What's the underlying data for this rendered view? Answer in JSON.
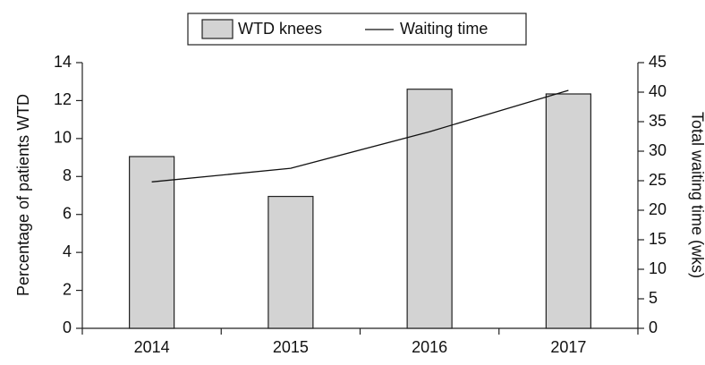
{
  "chart_data": {
    "type": "bar",
    "categories": [
      "2014",
      "2015",
      "2016",
      "2017"
    ],
    "series": [
      {
        "name": "WTD knees",
        "color": "#d3d3d3",
        "values": [
          9.05,
          6.95,
          12.6,
          12.35
        ]
      },
      {
        "name": "Waiting time",
        "color": "#111111",
        "type": "line",
        "axis": "y2",
        "values": [
          24.8,
          27.1,
          33.3,
          40.3
        ]
      }
    ],
    "ylabel": "Percentage of patients WTD",
    "y2label": "Total waiting time (wks)",
    "ylim": [
      0,
      14
    ],
    "yticks": [
      0,
      2,
      4,
      6,
      8,
      10,
      12,
      14
    ],
    "y2lim": [
      0,
      45
    ],
    "y2ticks": [
      0,
      5,
      10,
      15,
      20,
      25,
      30,
      35,
      40,
      45
    ],
    "legend": "top"
  }
}
